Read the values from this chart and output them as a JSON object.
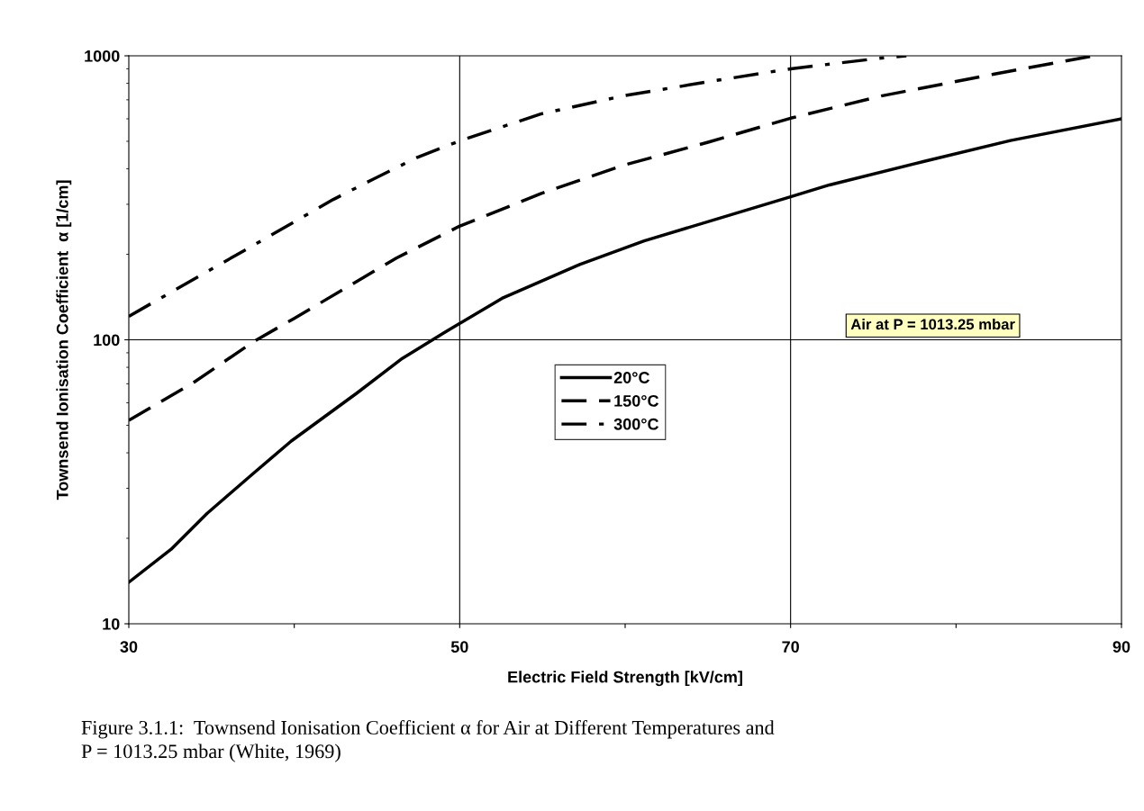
{
  "chart_data": {
    "type": "line",
    "xlabel": "Electric Field Strength [kV/cm]",
    "ylabel": "Townsend Ionisation Coefficient  α [1/cm]",
    "log": "y",
    "grid": true,
    "legend": "center",
    "xlim": [
      30,
      90
    ],
    "xticks": [
      30,
      {
        "value": 40,
        "label": null
      },
      50,
      {
        "value": 60,
        "label": null
      },
      70,
      {
        "value": 80,
        "label": null
      },
      90
    ],
    "ylim": [
      10,
      1000
    ],
    "yticks": [
      10,
      100,
      1000
    ],
    "series": [
      {
        "name": "20°C",
        "color": "#000000",
        "line_style": "solid",
        "x": [
          30,
          32.56,
          34.74,
          37.46,
          39.82,
          43.8,
          46.53,
          49.07,
          52.56,
          57.25,
          61.15,
          70.0,
          72.35,
          78.08,
          83.29,
          90
        ],
        "values": [
          14,
          18.3,
          24.5,
          33.6,
          44,
          65,
          86,
          106,
          140,
          184,
          223,
          319,
          351,
          425,
          503,
          600
        ]
      },
      {
        "name": "150°C",
        "color": "#000000",
        "line_style": "dashed",
        "x": [
          30,
          33.8,
          37.6,
          40.0,
          46.17,
          49.98,
          54.9,
          59.85,
          65.06,
          70.0,
          75.48,
          82.25,
          88.3
        ],
        "values": [
          52,
          70,
          99,
          119,
          194,
          251,
          327,
          411,
          497,
          603,
          722,
          861,
          1000
        ]
      },
      {
        "name": "300°C",
        "color": "#000000",
        "line_style": "dashdot",
        "x": [
          30,
          34.9,
          37.46,
          42.36,
          44.7,
          47.44,
          49.98,
          54.9,
          59.85,
          65.06,
          70.0,
          75.48,
          77.0
        ],
        "values": [
          121,
          176,
          214,
          312,
          366,
          439,
          501,
          624,
          722,
          811,
          900,
          982,
          1000
        ]
      }
    ],
    "annotations": [
      "Air at P = 1013.25 mbar",
      "Figure 3.1.1:  Townsend Ionisation Coefficient α for Air at Different Temperatures and\nP = 1013.25 mbar (White, 1969)"
    ]
  }
}
